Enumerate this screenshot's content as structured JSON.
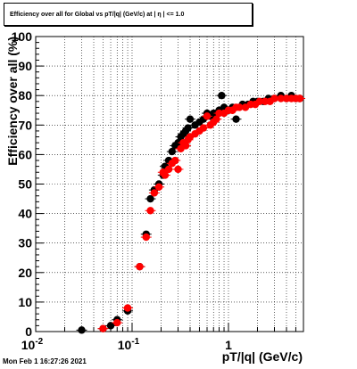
{
  "title": "Efficiency over all for Global vs pT/|q| (GeV/c) at | η | <= 1.0",
  "timestamp": "Mon Feb  1 16:27:26 2021",
  "chart_data": {
    "type": "scatter",
    "title": "Efficiency over all for Global vs pT/|q| (GeV/c) at | η | <= 1.0",
    "xlabel": "pT/|q| (GeV/c)",
    "ylabel": "Efficiency over all (%)",
    "x_scale": "log",
    "xlim": [
      0.01,
      6
    ],
    "ylim": [
      0,
      100
    ],
    "x_ticks": [
      {
        "label": "10",
        "exp": "-2",
        "value": 0.01
      },
      {
        "label": "10",
        "exp": "-1",
        "value": 0.1
      },
      {
        "label": "1",
        "exp": "",
        "value": 1
      }
    ],
    "y_ticks": [
      0,
      10,
      20,
      30,
      40,
      50,
      60,
      70,
      80,
      90,
      100
    ],
    "grid": true,
    "legend": "none",
    "series": [
      {
        "color": "#000000",
        "marker": "circle",
        "points": [
          [
            0.03,
            0.5
          ],
          [
            0.05,
            1
          ],
          [
            0.06,
            2
          ],
          [
            0.07,
            4
          ],
          [
            0.09,
            7
          ],
          [
            0.12,
            22
          ],
          [
            0.14,
            33
          ],
          [
            0.155,
            45
          ],
          [
            0.17,
            48
          ],
          [
            0.19,
            50
          ],
          [
            0.21,
            53
          ],
          [
            0.22,
            56
          ],
          [
            0.24,
            58
          ],
          [
            0.26,
            61
          ],
          [
            0.28,
            63
          ],
          [
            0.3,
            64
          ],
          [
            0.32,
            66
          ],
          [
            0.34,
            67
          ],
          [
            0.36,
            68
          ],
          [
            0.38,
            69
          ],
          [
            0.4,
            72
          ],
          [
            0.45,
            70
          ],
          [
            0.5,
            71
          ],
          [
            0.55,
            72
          ],
          [
            0.6,
            74
          ],
          [
            0.65,
            73
          ],
          [
            0.7,
            74
          ],
          [
            0.8,
            75
          ],
          [
            0.85,
            80
          ],
          [
            0.9,
            76
          ],
          [
            1.0,
            75
          ],
          [
            1.1,
            76
          ],
          [
            1.2,
            72
          ],
          [
            1.4,
            77
          ],
          [
            1.6,
            77
          ],
          [
            1.8,
            78
          ],
          [
            2.0,
            78
          ],
          [
            2.3,
            78
          ],
          [
            2.6,
            79
          ],
          [
            3.0,
            79
          ],
          [
            3.5,
            80
          ],
          [
            4.0,
            79
          ],
          [
            4.5,
            80
          ],
          [
            5.0,
            79
          ],
          [
            5.5,
            79
          ]
        ]
      },
      {
        "color": "#ff0000",
        "marker": "circle",
        "points": [
          [
            0.05,
            1
          ],
          [
            0.07,
            3
          ],
          [
            0.09,
            8
          ],
          [
            0.12,
            22
          ],
          [
            0.14,
            32
          ],
          [
            0.155,
            41
          ],
          [
            0.17,
            47
          ],
          [
            0.19,
            49
          ],
          [
            0.21,
            54
          ],
          [
            0.22,
            53
          ],
          [
            0.24,
            55
          ],
          [
            0.26,
            57
          ],
          [
            0.28,
            58
          ],
          [
            0.3,
            55
          ],
          [
            0.32,
            62
          ],
          [
            0.34,
            64
          ],
          [
            0.36,
            63
          ],
          [
            0.38,
            65
          ],
          [
            0.4,
            66
          ],
          [
            0.45,
            67
          ],
          [
            0.5,
            68
          ],
          [
            0.55,
            69
          ],
          [
            0.6,
            73
          ],
          [
            0.65,
            70
          ],
          [
            0.7,
            71
          ],
          [
            0.75,
            72
          ],
          [
            0.8,
            74
          ],
          [
            0.9,
            74
          ],
          [
            1.0,
            75
          ],
          [
            1.1,
            75
          ],
          [
            1.2,
            76
          ],
          [
            1.3,
            76
          ],
          [
            1.5,
            76
          ],
          [
            1.7,
            77
          ],
          [
            1.9,
            77
          ],
          [
            2.1,
            78
          ],
          [
            2.4,
            78
          ],
          [
            2.7,
            78
          ],
          [
            3.0,
            79
          ],
          [
            3.5,
            79
          ],
          [
            4.0,
            79
          ],
          [
            4.5,
            79
          ],
          [
            5.0,
            79
          ],
          [
            5.5,
            79
          ]
        ]
      }
    ]
  }
}
